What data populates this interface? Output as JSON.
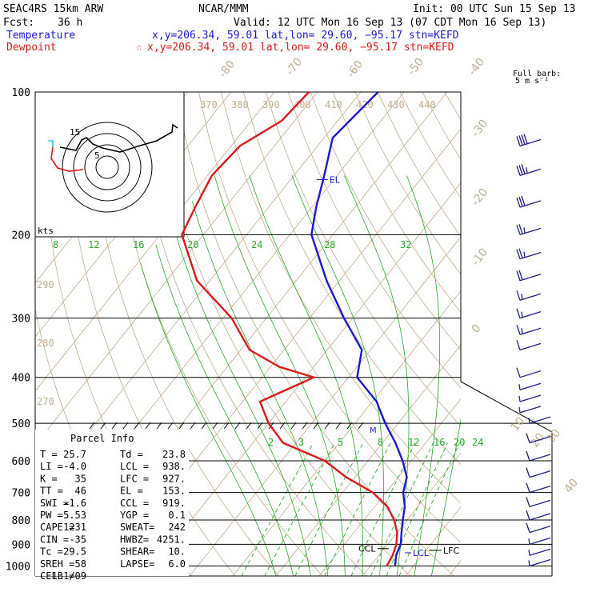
{
  "header": {
    "model": "SEAC4RS 15km ARW",
    "org": "NCAR/MMM",
    "init": "Init: 00 UTC Sun 15 Sep 13",
    "fcst_label": "Fcst:",
    "fcst_value": "36 h",
    "valid": "Valid: 12 UTC Mon 16 Sep 13 (07 CDT Mon 16 Sep 13)",
    "temp_label": "Temperature",
    "temp_info": "x,y=206.34, 59.01   lat,lon= 29.60, −95.17  stn=KEFD",
    "dew_label": "Dewpoint",
    "dew_marker": "☆",
    "dew_info": "x,y=206.34, 59.01   lat,lon= 29.60, −95.17  stn=KEFD"
  },
  "barb_legend": {
    "title": "Full barb:",
    "value": "5 m s⁻¹"
  },
  "hodograph": {
    "units": "kts",
    "ring_labels": [
      "5",
      "15"
    ]
  },
  "parcel_info": {
    "title": "Parcel Info",
    "rows": [
      [
        "T   =",
        "25.7",
        "Td =",
        "23.8"
      ],
      [
        "LI  =",
        "-4.0",
        "LCL =",
        "938."
      ],
      [
        "K   =",
        "35",
        "LFC =",
        "927."
      ],
      [
        "TT  =",
        "46",
        "EL  =",
        "153."
      ],
      [
        "SWI =",
        "-1.6",
        "CCL =",
        "919."
      ],
      [
        "PW  =",
        "5.53",
        "YGP =",
        "0.1"
      ],
      [
        "CAPE =",
        "1231",
        "SWEAT=",
        "242"
      ],
      [
        "CIN  =",
        "-35",
        "HWBZ=",
        "4251."
      ],
      [
        "Tc  =",
        "29.5",
        "SHEAR=",
        "10."
      ],
      [
        "SREH =",
        "58",
        "LAPSE=",
        "6.0"
      ],
      [
        "CELL =",
        "131/09",
        "",
        ""
      ]
    ]
  },
  "colors": {
    "temperature": "#e01818",
    "dewpoint": "#1818d8",
    "isotherm": "#c2ad8f",
    "dry_adiabat": "#c2ad8f",
    "moist_adiabat": "#28a828",
    "mixing_ratio": "#28a828",
    "barb": "#1c1c8c",
    "hodo_line": "#000000",
    "hodo_low": "#e01818",
    "hodo_top": "#30c0e8"
  },
  "chart_data": {
    "type": "skew-t log-p sounding",
    "pressure_ticks": [
      "100",
      "200",
      "300",
      "400",
      "500",
      "600",
      "700",
      "800",
      "900",
      "1000"
    ],
    "isotherm_labels": [
      "-80",
      "-70",
      "-60",
      "-50",
      "-40",
      "-30",
      "-20",
      "-10",
      "0",
      "10",
      "20",
      "30",
      "40"
    ],
    "theta_labels_top": [
      "370",
      "380",
      "390",
      "400",
      "410",
      "420",
      "430",
      "440"
    ],
    "theta_labels_left": [
      "290",
      "280",
      "270"
    ],
    "theta_e_labels": [
      "8",
      "12",
      "16",
      "20",
      "24",
      "28",
      "32"
    ],
    "mixing_ratio_labels": [
      "2",
      "3",
      "5",
      "8",
      "12",
      "16",
      "20",
      "24"
    ],
    "annotations": [
      "EL",
      "M",
      "CCL",
      "LCL",
      "LFC"
    ],
    "temperature": [
      [
        100,
        -66
      ],
      [
        125,
        -68
      ],
      [
        150,
        -63
      ],
      [
        175,
        -59
      ],
      [
        200,
        -55
      ],
      [
        250,
        -43
      ],
      [
        300,
        -32
      ],
      [
        350,
        -22
      ],
      [
        400,
        -18
      ],
      [
        450,
        -9
      ],
      [
        500,
        -3
      ],
      [
        550,
        3
      ],
      [
        600,
        8
      ],
      [
        650,
        12
      ],
      [
        700,
        14
      ],
      [
        750,
        17
      ],
      [
        800,
        19
      ],
      [
        850,
        21
      ],
      [
        900,
        23
      ],
      [
        950,
        24
      ],
      [
        1000,
        25.7
      ]
    ],
    "dewpoint": [
      [
        100,
        -82
      ],
      [
        115,
        -83
      ],
      [
        130,
        -88
      ],
      [
        150,
        -89
      ],
      [
        175,
        -87
      ],
      [
        200,
        -85
      ],
      [
        250,
        -73
      ],
      [
        300,
        -58
      ],
      [
        350,
        -48
      ],
      [
        380,
        -38
      ],
      [
        400,
        -28
      ],
      [
        450,
        -36
      ],
      [
        500,
        -30
      ],
      [
        550,
        -23
      ],
      [
        600,
        -10
      ],
      [
        650,
        -2
      ],
      [
        700,
        7
      ],
      [
        750,
        13
      ],
      [
        800,
        17
      ],
      [
        850,
        20
      ],
      [
        900,
        22
      ],
      [
        950,
        23.2
      ],
      [
        1000,
        23.8
      ]
    ],
    "wind_barbs": [
      [
        130,
        40
      ],
      [
        150,
        35
      ],
      [
        175,
        30
      ],
      [
        200,
        25
      ],
      [
        225,
        25
      ],
      [
        250,
        20
      ],
      [
        275,
        15
      ],
      [
        300,
        15
      ],
      [
        325,
        15
      ],
      [
        350,
        10
      ],
      [
        400,
        10
      ],
      [
        425,
        5
      ],
      [
        450,
        5
      ],
      [
        475,
        5
      ],
      [
        500,
        5
      ],
      [
        550,
        10
      ],
      [
        600,
        10
      ],
      [
        650,
        10
      ],
      [
        700,
        10
      ],
      [
        750,
        10
      ],
      [
        800,
        10
      ],
      [
        850,
        10
      ],
      [
        900,
        5
      ],
      [
        950,
        5
      ],
      [
        1000,
        5
      ]
    ]
  }
}
